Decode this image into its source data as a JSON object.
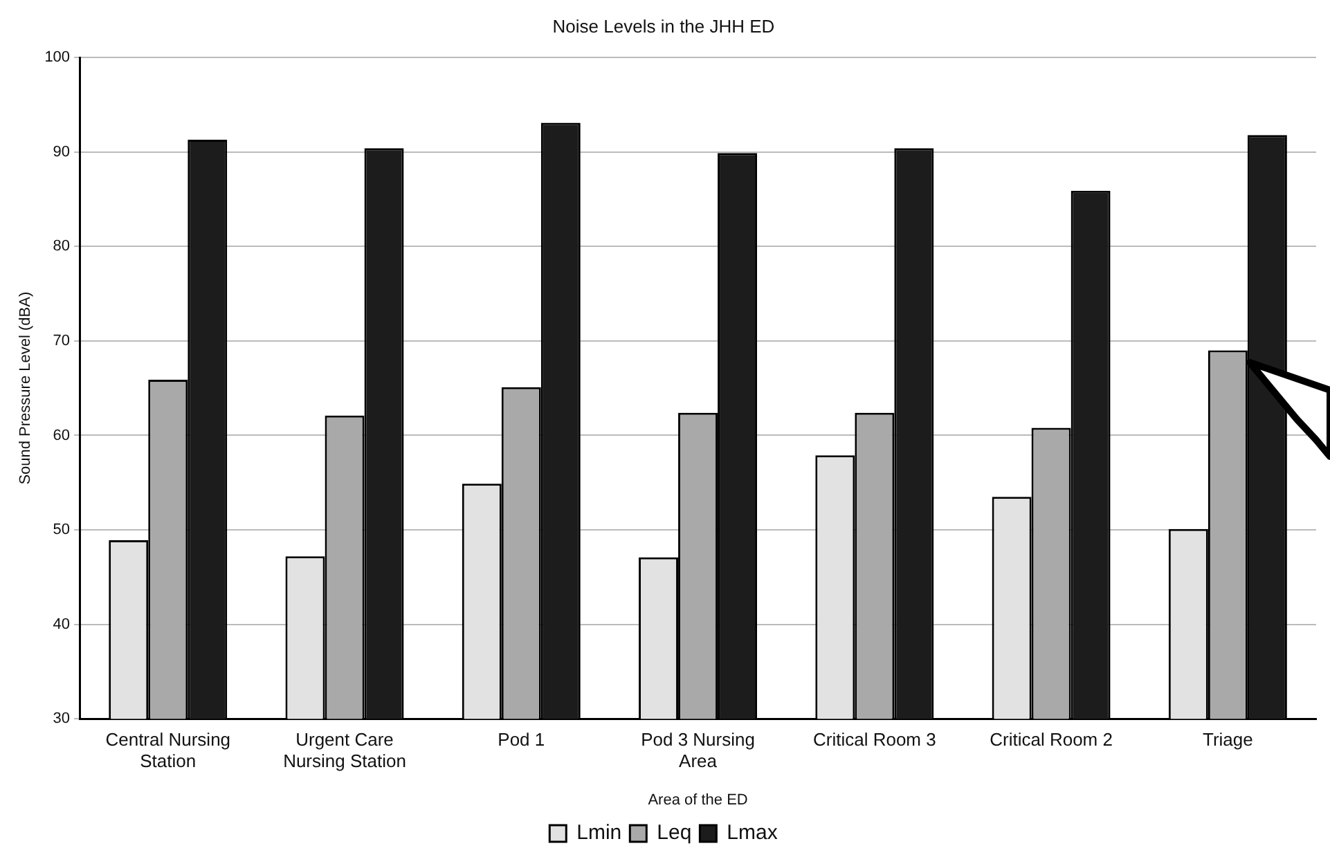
{
  "chart_data": {
    "type": "bar",
    "title": "Noise Levels in the JHH ED",
    "xlabel": "Area of the ED",
    "ylabel": "Sound Pressure Level (dBA)",
    "categories": [
      "Central Nursing Station",
      "Urgent Care Nursing Station",
      "Pod 1",
      "Pod 3 Nursing Area",
      "Critical Room 3",
      "Critical Room 2",
      "Triage"
    ],
    "series": [
      {
        "name": "Lmin",
        "color": "#e2e2e2",
        "values": [
          48.9,
          47.2,
          54.9,
          47.1,
          57.9,
          53.5,
          50.1
        ]
      },
      {
        "name": "Leq",
        "color": "#a9a9a9",
        "values": [
          65.9,
          62.1,
          65.1,
          62.4,
          62.4,
          60.8,
          69.0
        ]
      },
      {
        "name": "Lmax",
        "color": "#1c1c1c",
        "values": [
          91.3,
          90.4,
          93.1,
          89.9,
          90.4,
          85.9,
          91.8
        ]
      }
    ],
    "ylim": [
      30,
      100
    ],
    "yticks": [
      30,
      40,
      50,
      60,
      70,
      80,
      90,
      100
    ],
    "grid": "y",
    "legend": "bottom"
  }
}
